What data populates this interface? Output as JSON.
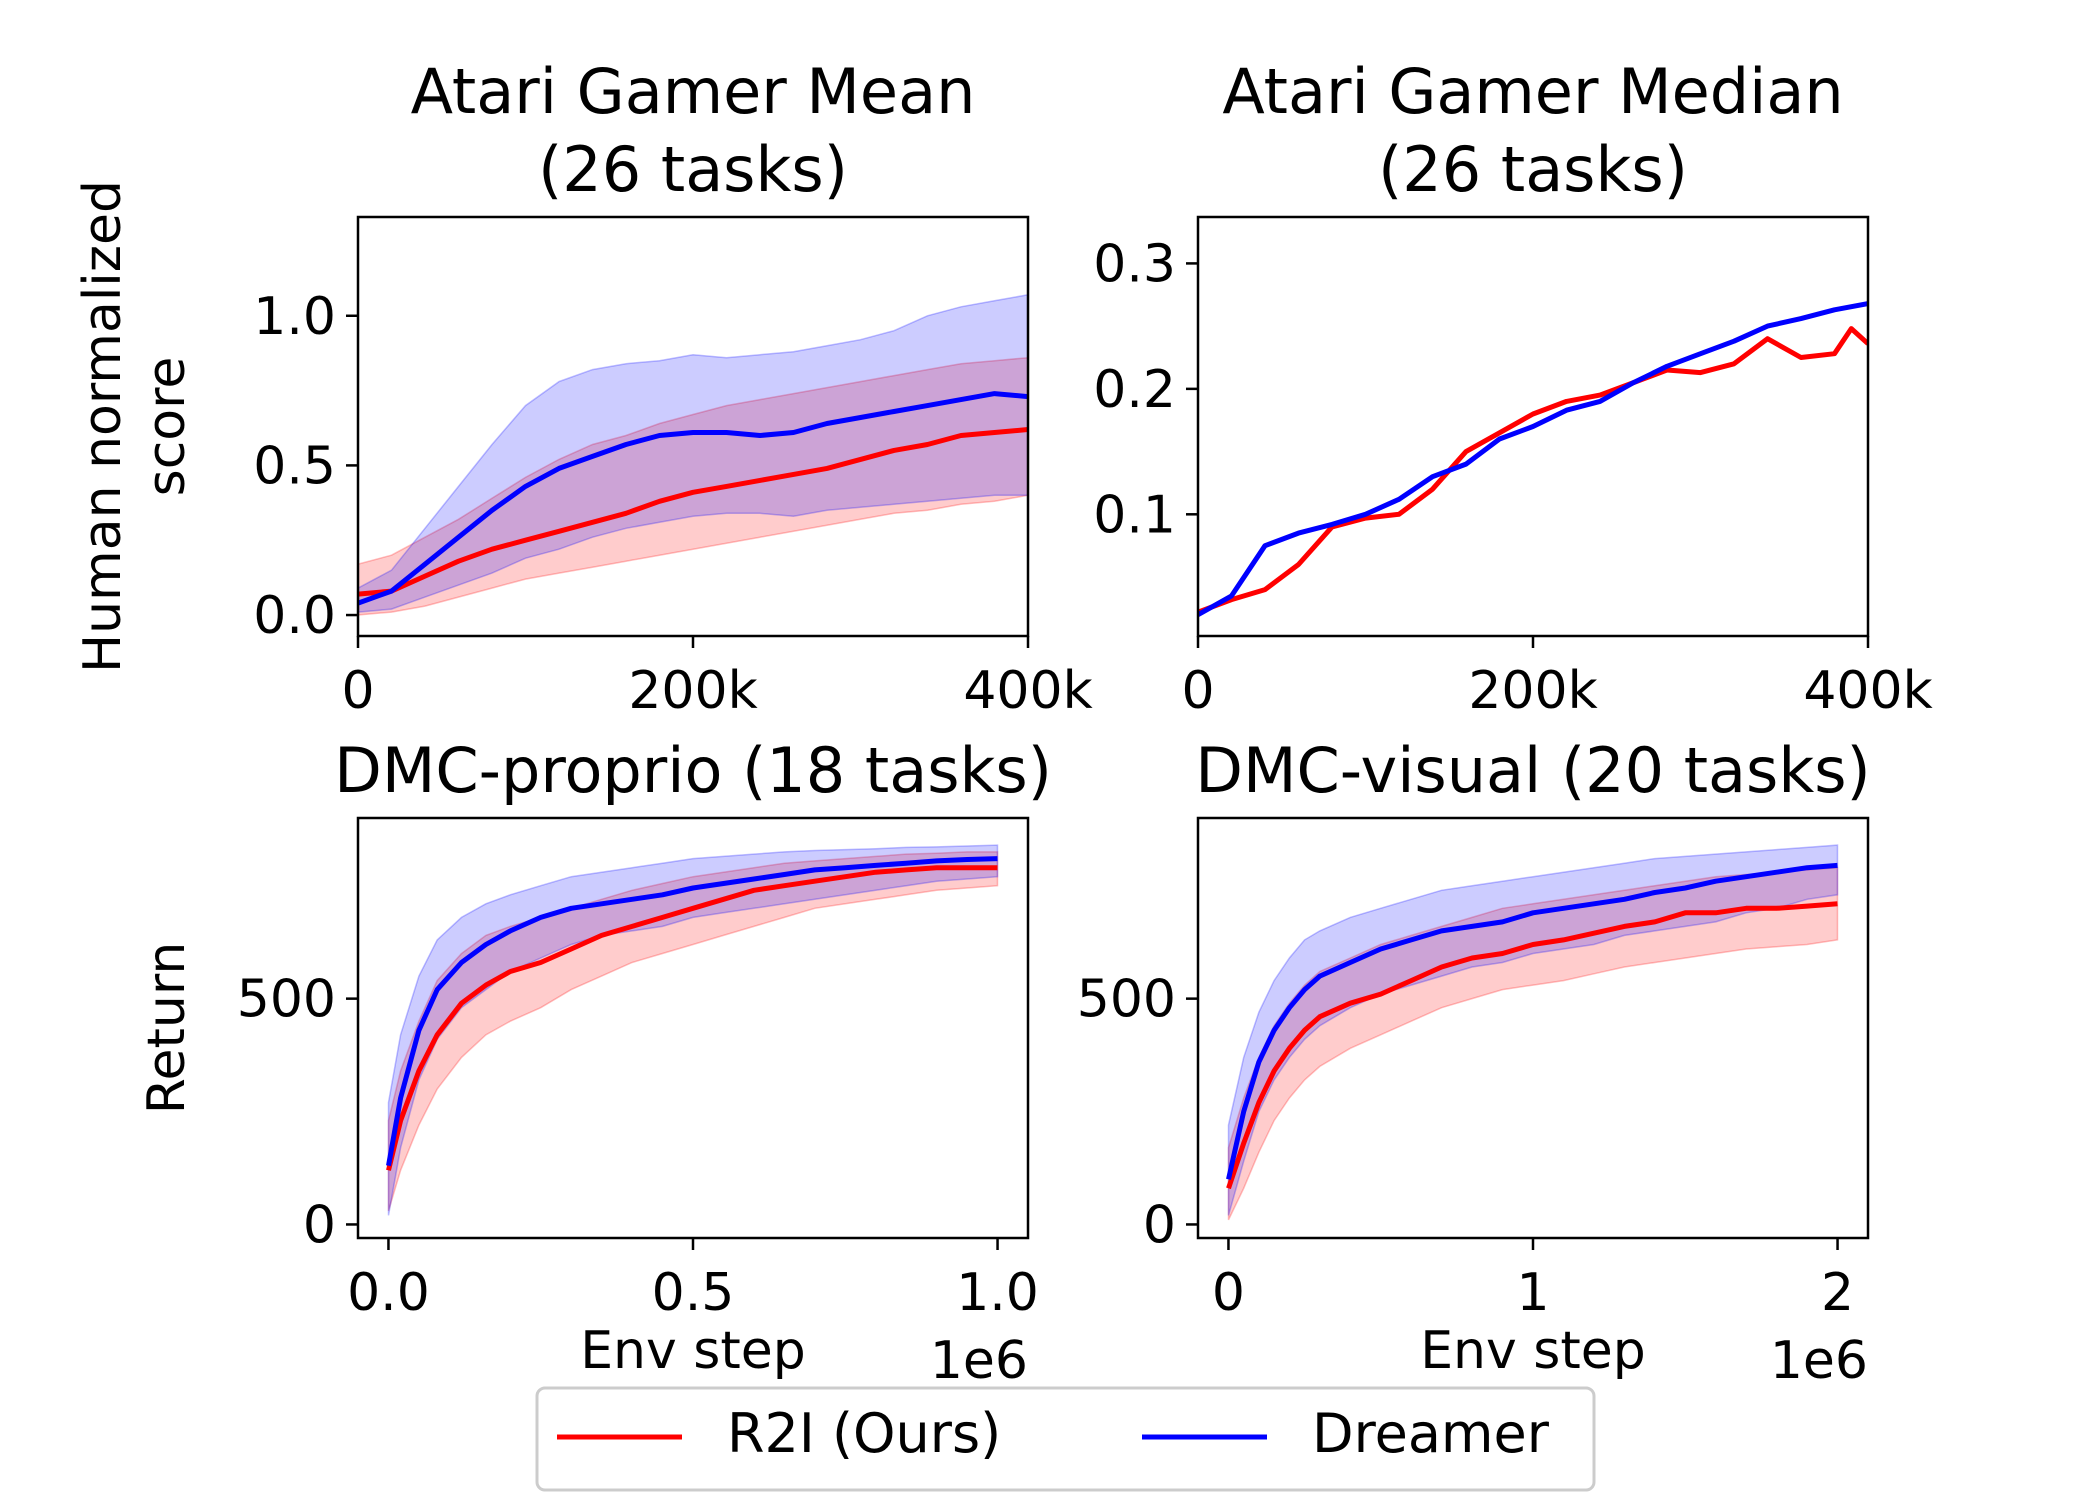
{
  "legend": {
    "placement": "bottom-center",
    "entries": [
      {
        "label": "R2I (Ours)",
        "color": "#ff0000"
      },
      {
        "label": "Dreamer",
        "color": "#0000ff"
      }
    ]
  },
  "chart_data": [
    {
      "type": "line",
      "title": "Atari Gamer Mean\n(26 tasks)",
      "xlabel": "",
      "ylabel": "Human normalized\nscore",
      "xlim": [
        0,
        400000
      ],
      "ylim": [
        -0.07,
        1.33
      ],
      "xticks": [
        0,
        200000,
        400000
      ],
      "xtick_labels": [
        "0",
        "200k",
        "400k"
      ],
      "yticks": [
        0.0,
        0.5,
        1.0
      ],
      "ytick_labels": [
        "0.0",
        "0.5",
        "1.0"
      ],
      "offset_text": "",
      "grid": false,
      "series": [
        {
          "name": "R2I (Ours)",
          "color": "#ff0000",
          "x": [
            0,
            20000,
            40000,
            60000,
            80000,
            100000,
            120000,
            140000,
            160000,
            180000,
            200000,
            220000,
            240000,
            260000,
            280000,
            300000,
            320000,
            340000,
            360000,
            380000,
            400000
          ],
          "y": [
            0.07,
            0.08,
            0.13,
            0.18,
            0.22,
            0.25,
            0.28,
            0.31,
            0.34,
            0.38,
            0.41,
            0.43,
            0.45,
            0.47,
            0.49,
            0.52,
            0.55,
            0.57,
            0.6,
            0.61,
            0.62
          ],
          "lower": [
            0.0,
            0.01,
            0.03,
            0.06,
            0.09,
            0.12,
            0.14,
            0.16,
            0.18,
            0.2,
            0.22,
            0.24,
            0.26,
            0.28,
            0.3,
            0.32,
            0.34,
            0.35,
            0.37,
            0.38,
            0.4
          ],
          "upper": [
            0.17,
            0.2,
            0.26,
            0.32,
            0.39,
            0.46,
            0.52,
            0.57,
            0.6,
            0.64,
            0.67,
            0.7,
            0.72,
            0.74,
            0.76,
            0.78,
            0.8,
            0.82,
            0.84,
            0.85,
            0.86
          ]
        },
        {
          "name": "Dreamer",
          "color": "#0000ff",
          "x": [
            0,
            20000,
            40000,
            60000,
            80000,
            100000,
            120000,
            140000,
            160000,
            180000,
            200000,
            220000,
            240000,
            260000,
            280000,
            300000,
            320000,
            340000,
            360000,
            380000,
            400000
          ],
          "y": [
            0.04,
            0.08,
            0.17,
            0.26,
            0.35,
            0.43,
            0.49,
            0.53,
            0.57,
            0.6,
            0.61,
            0.61,
            0.6,
            0.61,
            0.64,
            0.66,
            0.68,
            0.7,
            0.72,
            0.74,
            0.73
          ],
          "lower": [
            0.01,
            0.02,
            0.06,
            0.1,
            0.14,
            0.19,
            0.22,
            0.26,
            0.29,
            0.31,
            0.33,
            0.34,
            0.34,
            0.33,
            0.35,
            0.36,
            0.37,
            0.38,
            0.39,
            0.4,
            0.4
          ],
          "upper": [
            0.09,
            0.15,
            0.29,
            0.43,
            0.57,
            0.7,
            0.78,
            0.82,
            0.84,
            0.85,
            0.87,
            0.86,
            0.87,
            0.88,
            0.9,
            0.92,
            0.95,
            1.0,
            1.03,
            1.05,
            1.07
          ]
        }
      ]
    },
    {
      "type": "line",
      "title": "Atari Gamer Median\n(26 tasks)",
      "xlabel": "",
      "ylabel": "",
      "xlim": [
        0,
        400000
      ],
      "ylim": [
        0.003,
        0.337
      ],
      "xticks": [
        0,
        200000,
        400000
      ],
      "xtick_labels": [
        "0",
        "200k",
        "400k"
      ],
      "yticks": [
        0.1,
        0.2,
        0.3
      ],
      "ytick_labels": [
        "0.1",
        "0.2",
        "0.3"
      ],
      "offset_text": "",
      "grid": false,
      "series": [
        {
          "name": "R2I (Ours)",
          "color": "#ff0000",
          "x": [
            0,
            20000,
            40000,
            60000,
            80000,
            100000,
            120000,
            140000,
            160000,
            180000,
            200000,
            220000,
            240000,
            260000,
            280000,
            300000,
            320000,
            340000,
            360000,
            380000,
            390000,
            400000
          ],
          "y": [
            0.022,
            0.032,
            0.04,
            0.06,
            0.09,
            0.097,
            0.1,
            0.12,
            0.15,
            0.165,
            0.18,
            0.19,
            0.195,
            0.205,
            0.215,
            0.213,
            0.22,
            0.24,
            0.225,
            0.228,
            0.248,
            0.236
          ],
          "lower": [],
          "upper": []
        },
        {
          "name": "Dreamer",
          "color": "#0000ff",
          "x": [
            0,
            20000,
            40000,
            60000,
            80000,
            100000,
            120000,
            140000,
            160000,
            180000,
            200000,
            220000,
            240000,
            260000,
            280000,
            300000,
            320000,
            340000,
            360000,
            380000,
            400000
          ],
          "y": [
            0.02,
            0.035,
            0.075,
            0.085,
            0.092,
            0.1,
            0.112,
            0.13,
            0.14,
            0.16,
            0.17,
            0.183,
            0.19,
            0.205,
            0.218,
            0.228,
            0.238,
            0.25,
            0.256,
            0.263,
            0.268
          ],
          "lower": [],
          "upper": []
        }
      ]
    },
    {
      "type": "line",
      "title": "DMC-proprio (18 tasks)",
      "xlabel": "Env step",
      "ylabel": "Return",
      "xlim": [
        -0.05,
        1.05
      ],
      "ylim": [
        -30,
        900
      ],
      "xticks": [
        0.0,
        0.5,
        1.0
      ],
      "xtick_labels": [
        "0.0",
        "0.5",
        "1.0"
      ],
      "yticks": [
        0,
        500
      ],
      "ytick_labels": [
        "0",
        "500"
      ],
      "offset_text": "1e6",
      "grid": false,
      "series": [
        {
          "name": "R2I (Ours)",
          "color": "#ff0000",
          "x": [
            0.0,
            0.02,
            0.05,
            0.08,
            0.12,
            0.16,
            0.2,
            0.25,
            0.3,
            0.35,
            0.4,
            0.45,
            0.5,
            0.55,
            0.6,
            0.65,
            0.7,
            0.75,
            0.8,
            0.85,
            0.9,
            0.95,
            1.0
          ],
          "y": [
            120,
            230,
            340,
            420,
            490,
            530,
            560,
            580,
            610,
            640,
            660,
            680,
            700,
            720,
            740,
            750,
            760,
            770,
            780,
            785,
            790,
            790,
            790
          ],
          "lower": [
            30,
            120,
            220,
            300,
            370,
            420,
            450,
            480,
            520,
            550,
            580,
            600,
            620,
            640,
            660,
            680,
            700,
            710,
            720,
            730,
            740,
            745,
            750
          ],
          "upper": [
            230,
            340,
            450,
            540,
            600,
            640,
            660,
            680,
            700,
            720,
            740,
            755,
            770,
            780,
            790,
            800,
            805,
            810,
            815,
            820,
            822,
            825,
            825
          ]
        },
        {
          "name": "Dreamer",
          "color": "#0000ff",
          "x": [
            0.0,
            0.02,
            0.05,
            0.08,
            0.12,
            0.16,
            0.2,
            0.25,
            0.3,
            0.35,
            0.4,
            0.45,
            0.5,
            0.55,
            0.6,
            0.65,
            0.7,
            0.75,
            0.8,
            0.85,
            0.9,
            0.95,
            1.0
          ],
          "y": [
            130,
            280,
            430,
            520,
            580,
            620,
            650,
            680,
            700,
            710,
            720,
            730,
            745,
            755,
            765,
            775,
            785,
            790,
            795,
            800,
            805,
            808,
            810
          ],
          "lower": [
            20,
            170,
            320,
            410,
            480,
            520,
            560,
            590,
            620,
            640,
            650,
            660,
            680,
            690,
            700,
            710,
            720,
            730,
            740,
            750,
            760,
            765,
            770
          ],
          "upper": [
            270,
            420,
            550,
            630,
            680,
            710,
            730,
            750,
            770,
            780,
            790,
            800,
            810,
            815,
            820,
            825,
            828,
            830,
            832,
            835,
            836,
            838,
            840
          ]
        }
      ]
    },
    {
      "type": "line",
      "title": "DMC-visual (20 tasks)",
      "xlabel": "Env step",
      "ylabel": "",
      "xlim": [
        -0.1,
        2.1
      ],
      "ylim": [
        -30,
        900
      ],
      "xticks": [
        0,
        1,
        2
      ],
      "xtick_labels": [
        "0",
        "1",
        "2"
      ],
      "yticks": [
        0,
        500
      ],
      "ytick_labels": [
        "0",
        "500"
      ],
      "offset_text": "1e6",
      "grid": false,
      "series": [
        {
          "name": "R2I (Ours)",
          "color": "#ff0000",
          "x": [
            0.0,
            0.05,
            0.1,
            0.15,
            0.2,
            0.25,
            0.3,
            0.4,
            0.5,
            0.6,
            0.7,
            0.8,
            0.9,
            1.0,
            1.1,
            1.2,
            1.3,
            1.4,
            1.5,
            1.6,
            1.7,
            1.8,
            1.9,
            2.0
          ],
          "y": [
            80,
            180,
            270,
            340,
            390,
            430,
            460,
            490,
            510,
            540,
            570,
            590,
            600,
            620,
            630,
            645,
            660,
            670,
            690,
            690,
            700,
            700,
            705,
            710
          ],
          "lower": [
            10,
            80,
            160,
            230,
            280,
            320,
            350,
            390,
            420,
            450,
            480,
            500,
            520,
            530,
            540,
            555,
            570,
            580,
            590,
            600,
            610,
            615,
            620,
            630
          ],
          "upper": [
            170,
            280,
            370,
            440,
            490,
            530,
            560,
            590,
            620,
            640,
            660,
            680,
            700,
            710,
            720,
            730,
            740,
            750,
            760,
            770,
            775,
            780,
            785,
            790
          ]
        },
        {
          "name": "Dreamer",
          "color": "#0000ff",
          "x": [
            0.0,
            0.05,
            0.1,
            0.15,
            0.2,
            0.25,
            0.3,
            0.4,
            0.5,
            0.6,
            0.7,
            0.8,
            0.9,
            1.0,
            1.1,
            1.2,
            1.3,
            1.4,
            1.5,
            1.6,
            1.7,
            1.8,
            1.9,
            2.0
          ],
          "y": [
            100,
            250,
            360,
            430,
            480,
            520,
            550,
            580,
            610,
            630,
            650,
            660,
            670,
            690,
            700,
            710,
            720,
            735,
            745,
            760,
            770,
            780,
            790,
            795
          ],
          "lower": [
            20,
            140,
            250,
            320,
            370,
            410,
            440,
            480,
            510,
            530,
            550,
            570,
            580,
            600,
            610,
            620,
            640,
            650,
            660,
            670,
            690,
            700,
            720,
            730
          ],
          "upper": [
            220,
            370,
            470,
            540,
            590,
            630,
            650,
            680,
            700,
            720,
            740,
            750,
            760,
            770,
            780,
            790,
            800,
            810,
            815,
            820,
            825,
            830,
            835,
            840
          ]
        }
      ]
    }
  ]
}
